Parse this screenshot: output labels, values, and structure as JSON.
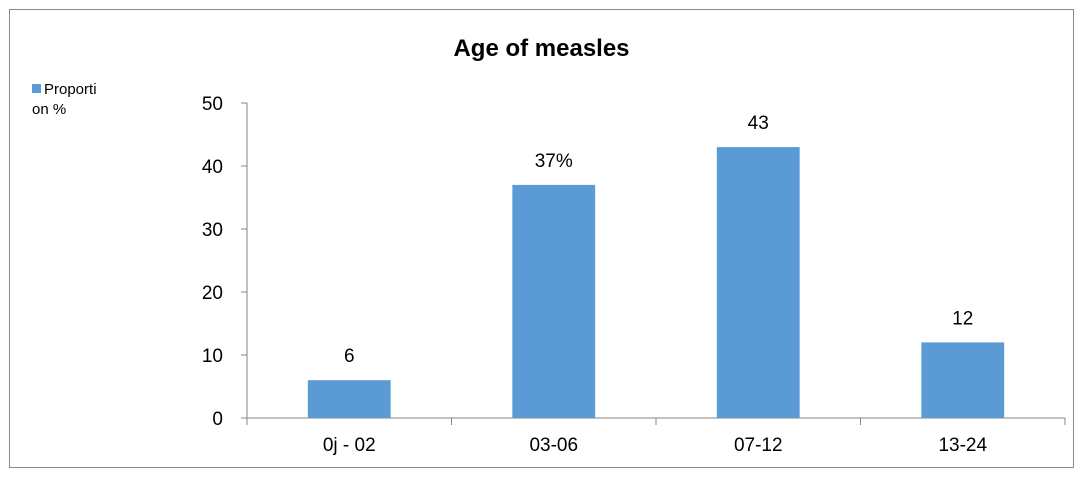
{
  "chart_data": {
    "type": "bar",
    "title": "Age of measles",
    "categories": [
      "0j - 02",
      "03-06",
      "07-12",
      "13-24"
    ],
    "series": [
      {
        "name": "Proportion %",
        "values": [
          6,
          37,
          43,
          12
        ],
        "color": "#5b9bd5"
      }
    ],
    "data_labels": [
      "6",
      "37%",
      "43",
      "12"
    ],
    "ylim": [
      0,
      50
    ],
    "yticks": [
      0,
      10,
      20,
      30,
      40,
      50
    ],
    "grid": false,
    "legend_position": "top-left",
    "legend": {
      "line1": "Proporti",
      "line2": "on %"
    }
  }
}
